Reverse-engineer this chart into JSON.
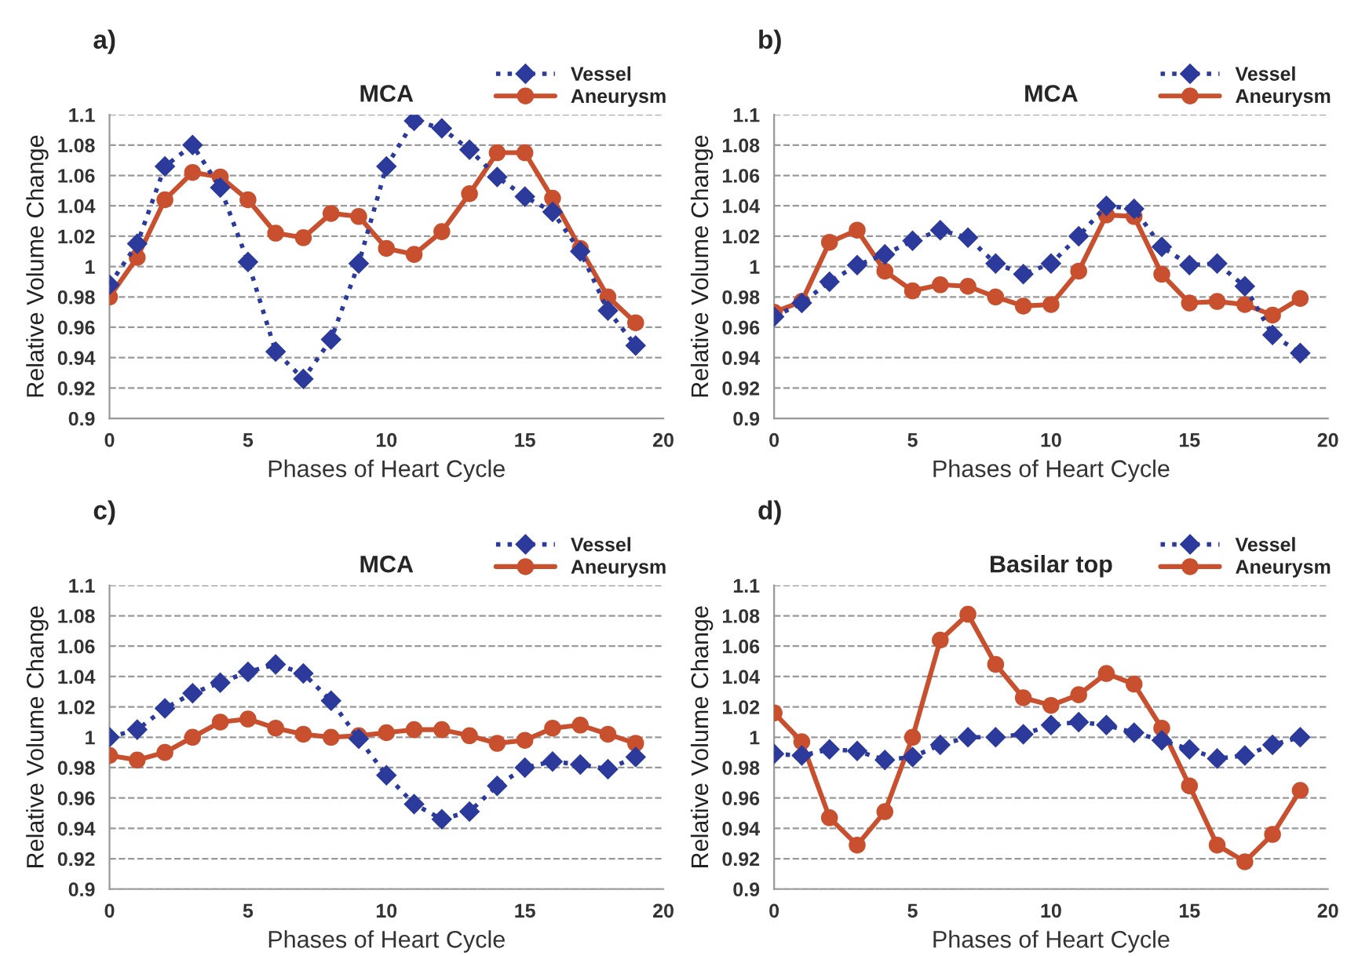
{
  "chart_data": [
    {
      "type": "line",
      "title": "MCA",
      "annotations": [
        "a)"
      ],
      "xlabel": "Phases of Heart Cycle",
      "ylabel": "Relative Volume Change",
      "x": [
        0,
        1,
        2,
        3,
        4,
        5,
        6,
        7,
        8,
        9,
        10,
        11,
        12,
        13,
        14,
        15,
        16,
        17,
        18,
        19
      ],
      "xlim": [
        0,
        20
      ],
      "xticks": [
        0,
        5,
        10,
        15,
        20
      ],
      "ylim": [
        0.9,
        1.1
      ],
      "yticks": [
        0.9,
        0.92,
        0.94,
        0.96,
        0.98,
        1,
        1.02,
        1.04,
        1.06,
        1.08,
        1.1
      ],
      "grid": "y",
      "legend": "top right",
      "series": [
        {
          "name": "Vessel",
          "color": "#2b3a9b",
          "marker": "diamond",
          "line_style": "dotted",
          "values": [
            0.988,
            1.015,
            1.066,
            1.08,
            1.052,
            1.003,
            0.944,
            0.926,
            0.952,
            1.002,
            1.066,
            1.096,
            1.091,
            1.077,
            1.059,
            1.046,
            1.036,
            1.01,
            0.971,
            0.948
          ]
        },
        {
          "name": "Aneurysm",
          "color": "#c8502e",
          "marker": "circle",
          "line_style": "solid",
          "values": [
            0.98,
            1.006,
            1.044,
            1.062,
            1.059,
            1.044,
            1.022,
            1.019,
            1.035,
            1.033,
            1.012,
            1.008,
            1.023,
            1.048,
            1.075,
            1.075,
            1.045,
            1.012,
            0.98,
            0.963
          ]
        }
      ]
    },
    {
      "type": "line",
      "title": "MCA",
      "annotations": [
        "b)"
      ],
      "xlabel": "Phases of Heart Cycle",
      "ylabel": "Relative Volume Change",
      "x": [
        0,
        1,
        2,
        3,
        4,
        5,
        6,
        7,
        8,
        9,
        10,
        11,
        12,
        13,
        14,
        15,
        16,
        17,
        18,
        19
      ],
      "xlim": [
        0,
        20
      ],
      "xticks": [
        0,
        5,
        10,
        15,
        20
      ],
      "ylim": [
        0.9,
        1.1
      ],
      "yticks": [
        0.9,
        0.92,
        0.94,
        0.96,
        0.98,
        1,
        1.02,
        1.04,
        1.06,
        1.08,
        1.1
      ],
      "grid": "y",
      "legend": "top right",
      "series": [
        {
          "name": "Vessel",
          "color": "#2b3a9b",
          "marker": "diamond",
          "line_style": "dotted",
          "values": [
            0.967,
            0.976,
            0.99,
            1.001,
            1.008,
            1.017,
            1.024,
            1.019,
            1.002,
            0.995,
            1.002,
            1.02,
            1.04,
            1.038,
            1.013,
            1.001,
            1.002,
            0.987,
            0.955,
            0.943
          ]
        },
        {
          "name": "Aneurysm",
          "color": "#c8502e",
          "marker": "circle",
          "line_style": "solid",
          "values": [
            0.97,
            0.977,
            1.016,
            1.024,
            0.997,
            0.984,
            0.988,
            0.987,
            0.98,
            0.974,
            0.975,
            0.997,
            1.034,
            1.033,
            0.995,
            0.976,
            0.977,
            0.975,
            0.968,
            0.979
          ]
        }
      ]
    },
    {
      "type": "line",
      "title": "MCA",
      "annotations": [
        "c)"
      ],
      "xlabel": "Phases of Heart Cycle",
      "ylabel": "Relative Volume Change",
      "x": [
        0,
        1,
        2,
        3,
        4,
        5,
        6,
        7,
        8,
        9,
        10,
        11,
        12,
        13,
        14,
        15,
        16,
        17,
        18,
        19
      ],
      "xlim": [
        0,
        20
      ],
      "xticks": [
        0,
        5,
        10,
        15,
        20
      ],
      "ylim": [
        0.9,
        1.1
      ],
      "yticks": [
        0.9,
        0.92,
        0.94,
        0.96,
        0.98,
        1,
        1.02,
        1.04,
        1.06,
        1.08,
        1.1
      ],
      "grid": "y",
      "legend": "top right",
      "series": [
        {
          "name": "Vessel",
          "color": "#2b3a9b",
          "marker": "diamond",
          "line_style": "dotted",
          "values": [
            1.0,
            1.005,
            1.019,
            1.029,
            1.036,
            1.043,
            1.048,
            1.042,
            1.024,
            0.999,
            0.975,
            0.956,
            0.946,
            0.951,
            0.968,
            0.98,
            0.984,
            0.982,
            0.979,
            0.987
          ]
        },
        {
          "name": "Aneurysm",
          "color": "#c8502e",
          "marker": "circle",
          "line_style": "solid",
          "values": [
            0.988,
            0.985,
            0.99,
            1.0,
            1.01,
            1.012,
            1.006,
            1.002,
            1.0,
            1.001,
            1.003,
            1.005,
            1.005,
            1.001,
            0.996,
            0.998,
            1.006,
            1.008,
            1.002,
            0.996
          ]
        }
      ]
    },
    {
      "type": "line",
      "title": "Basilar top",
      "annotations": [
        "d)"
      ],
      "xlabel": "Phases of Heart Cycle",
      "ylabel": "Relative Volume Change",
      "x": [
        0,
        1,
        2,
        3,
        4,
        5,
        6,
        7,
        8,
        9,
        10,
        11,
        12,
        13,
        14,
        15,
        16,
        17,
        18,
        19
      ],
      "xlim": [
        0,
        20
      ],
      "xticks": [
        0,
        5,
        10,
        15,
        20
      ],
      "ylim": [
        0.9,
        1.1
      ],
      "yticks": [
        0.9,
        0.92,
        0.94,
        0.96,
        0.98,
        1,
        1.02,
        1.04,
        1.06,
        1.08,
        1.1
      ],
      "grid": "y",
      "legend": "top right",
      "series": [
        {
          "name": "Vessel",
          "color": "#2b3a9b",
          "marker": "diamond",
          "line_style": "dotted",
          "values": [
            0.989,
            0.988,
            0.992,
            0.991,
            0.985,
            0.987,
            0.995,
            1.0,
            1.0,
            1.002,
            1.008,
            1.01,
            1.008,
            1.003,
            0.998,
            0.992,
            0.986,
            0.988,
            0.995,
            1.0
          ]
        },
        {
          "name": "Aneurysm",
          "color": "#c8502e",
          "marker": "circle",
          "line_style": "solid",
          "values": [
            1.016,
            0.997,
            0.947,
            0.929,
            0.951,
            1.0,
            1.064,
            1.081,
            1.048,
            1.026,
            1.021,
            1.028,
            1.042,
            1.035,
            1.006,
            0.968,
            0.929,
            0.918,
            0.936,
            0.965
          ]
        }
      ]
    }
  ]
}
